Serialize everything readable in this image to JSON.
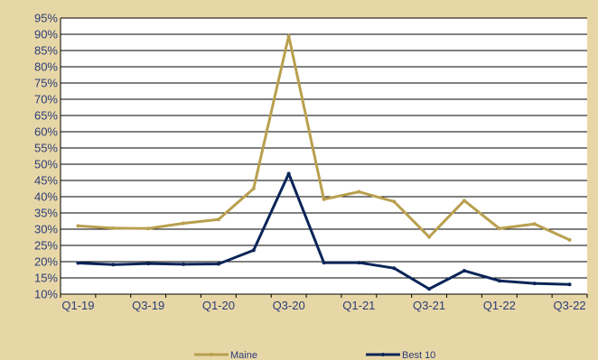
{
  "chart_data": {
    "type": "line",
    "title": "",
    "xlabel": "",
    "ylabel": "",
    "ylim": [
      10,
      95
    ],
    "yticks": [
      "10%",
      "15%",
      "20%",
      "25%",
      "30%",
      "35%",
      "40%",
      "45%",
      "50%",
      "55%",
      "60%",
      "65%",
      "70%",
      "75%",
      "80%",
      "85%",
      "90%",
      "95%"
    ],
    "ytick_values": [
      10,
      15,
      20,
      25,
      30,
      35,
      40,
      45,
      50,
      55,
      60,
      65,
      70,
      75,
      80,
      85,
      90,
      95
    ],
    "x": [
      "Q1-19",
      "Q2-19",
      "Q3-19",
      "Q4-19",
      "Q1-20",
      "Q2-20",
      "Q3-20",
      "Q4-20",
      "Q1-21",
      "Q2-21",
      "Q3-21",
      "Q4-21",
      "Q1-22",
      "Q2-22",
      "Q3-22"
    ],
    "xtick_labels": [
      "Q1-19",
      "Q3-19",
      "Q1-20",
      "Q3-20",
      "Q1-21",
      "Q3-21",
      "Q1-22",
      "Q3-22"
    ],
    "grid": true,
    "legend_position": "bottom",
    "series": [
      {
        "name": "Maine",
        "color": "#b9a04f",
        "values": [
          31,
          30.3,
          30.2,
          31.8,
          33,
          42.5,
          89.5,
          39.2,
          41.5,
          38.5,
          27.6,
          38.8,
          30.2,
          31.6,
          26.7
        ]
      },
      {
        "name": "Best 10",
        "color": "#0b2558",
        "values": [
          19.6,
          19.1,
          19.4,
          19.2,
          19.3,
          23.5,
          47.1,
          19.7,
          19.7,
          18,
          11.6,
          17.2,
          14.1,
          13.3,
          13
        ]
      }
    ]
  }
}
